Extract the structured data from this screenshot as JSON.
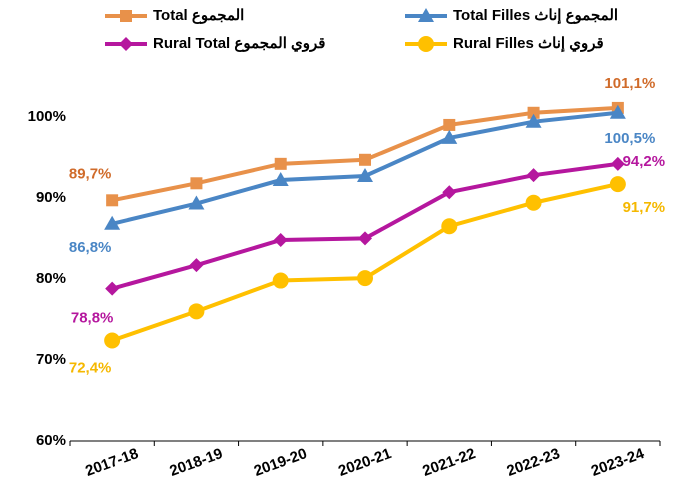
{
  "chart_data": {
    "type": "line",
    "categories": [
      "2017-18",
      "2018-19",
      "2019-20",
      "2020-21",
      "2021-22",
      "2022-23",
      "2023-24"
    ],
    "series": [
      {
        "name": "Total المجموع",
        "color": "#e8914a",
        "label_color": "#d06b2a",
        "marker": "square",
        "values": [
          89.7,
          91.8,
          94.2,
          94.7,
          99.0,
          100.5,
          101.1
        ],
        "value_labels": [
          "89,7%",
          null,
          null,
          null,
          null,
          null,
          "101,1%"
        ]
      },
      {
        "name": "Total Filles المجموع إناث",
        "color": "#4a86c5",
        "label_color": "#4a86c5",
        "marker": "triangle",
        "values": [
          86.8,
          89.3,
          92.2,
          92.7,
          97.4,
          99.4,
          100.5
        ],
        "value_labels": [
          "86,8%",
          null,
          null,
          null,
          null,
          null,
          "100,5%"
        ]
      },
      {
        "name": "Rural Total قروي المجموع",
        "color": "#b5179e",
        "label_color": "#b5179e",
        "marker": "diamond",
        "values": [
          78.8,
          81.7,
          84.8,
          85.0,
          90.7,
          92.8,
          94.2
        ],
        "value_labels": [
          "78,8%",
          null,
          null,
          null,
          null,
          null,
          "94,2%"
        ]
      },
      {
        "name": "Rural Filles قروي إناث",
        "color": "#ffc000",
        "label_color": "#f5b800",
        "marker": "circle",
        "values": [
          72.4,
          76.0,
          79.8,
          80.1,
          86.5,
          89.4,
          91.7
        ],
        "value_labels": [
          "72,4%",
          null,
          null,
          null,
          null,
          null,
          "91,7%"
        ]
      }
    ],
    "ylim": [
      60,
      108
    ],
    "yticks": [
      {
        "value": 60,
        "label": "60%"
      },
      {
        "value": 70,
        "label": "70%"
      },
      {
        "value": 80,
        "label": "80%"
      },
      {
        "value": 90,
        "label": "90%"
      },
      {
        "value": 100,
        "label": "100%"
      }
    ],
    "legend": "top",
    "grid": false
  }
}
